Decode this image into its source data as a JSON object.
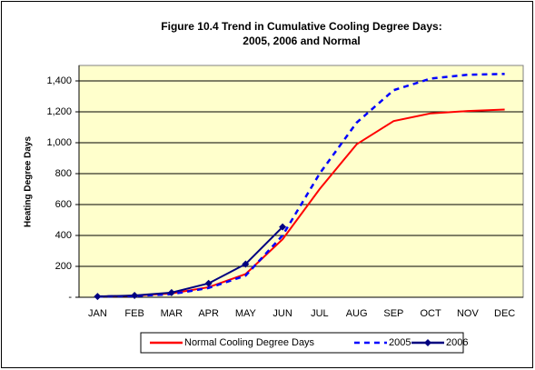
{
  "chart_data": {
    "type": "line",
    "title": [
      "Figure 10.4  Trend in Cumulative Cooling Degree Days:",
      "2005, 2006 and Normal"
    ],
    "y_label": "Heating Degree Days",
    "categories": [
      "JAN",
      "FEB",
      "MAR",
      "APR",
      "MAY",
      "JUN",
      "JUL",
      "AUG",
      "SEP",
      "OCT",
      "NOV",
      "DEC"
    ],
    "series": [
      {
        "name": "Normal Cooling Degree Days",
        "color": "#ff0000",
        "dash": "solid",
        "marker": "none",
        "values": [
          5,
          10,
          25,
          65,
          150,
          375,
          700,
          990,
          1140,
          1190,
          1205,
          1215
        ]
      },
      {
        "name": "2005",
        "color": "#0000ff",
        "dash": "dashed",
        "marker": "none",
        "values": [
          5,
          8,
          20,
          60,
          140,
          400,
          800,
          1130,
          1340,
          1415,
          1440,
          1445
        ]
      },
      {
        "name": "2006",
        "color": "#000080",
        "dash": "solid",
        "marker": "diamond",
        "values": [
          5,
          12,
          30,
          90,
          215,
          455,
          null,
          null,
          null,
          null,
          null,
          null
        ]
      }
    ],
    "ylim": [
      0,
      1500
    ],
    "yticks": [
      {
        "value": 0,
        "label": "-"
      },
      200,
      400,
      600,
      800,
      {
        "value": 1000,
        "label": "1,000"
      },
      {
        "value": 1200,
        "label": "1,200"
      },
      {
        "value": 1400,
        "label": "1,400"
      }
    ],
    "grid": true,
    "legend": "bottom",
    "plot_background": "#ffffcc"
  }
}
